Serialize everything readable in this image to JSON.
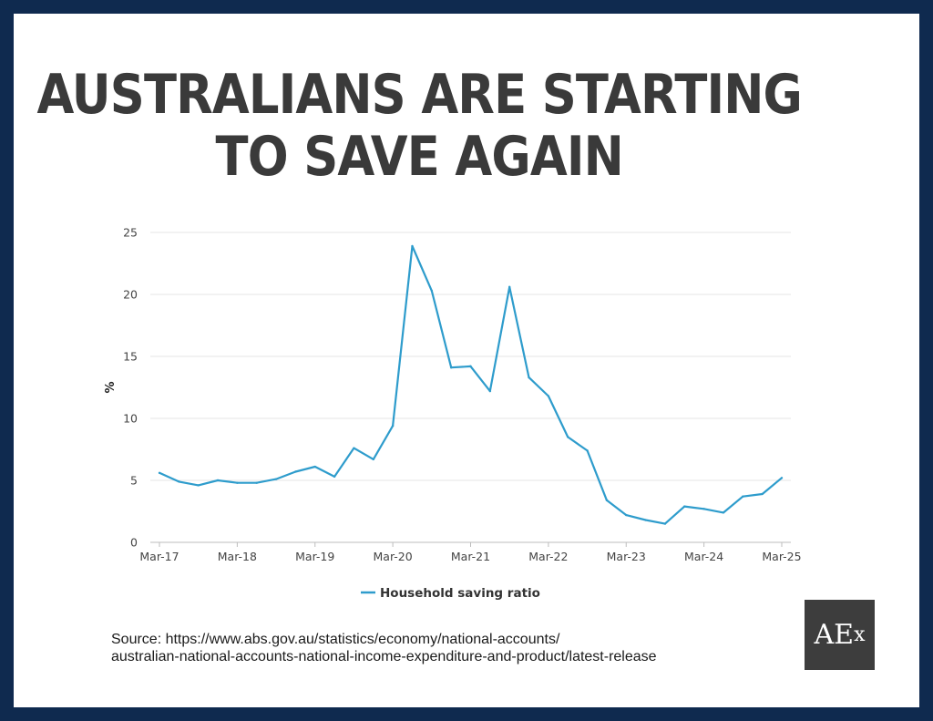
{
  "title": {
    "line1": "AUSTRALIANS ARE STARTING",
    "line2": "TO SAVE AGAIN"
  },
  "source": {
    "line1": "Source: https://www.abs.gov.au/statistics/economy/national-accounts/",
    "line2": "australian-national-accounts-national-income-expenditure-and-product/latest-release"
  },
  "logo": {
    "main": "AE",
    "sub": "x"
  },
  "colors": {
    "background": "#0f2a4f",
    "series": "#2e9ccc",
    "title": "#3a3a3a",
    "logo_bg": "#3d3d3d"
  },
  "chart_data": {
    "type": "line",
    "title": "",
    "xlabel": "",
    "ylabel": "%",
    "ylim": [
      0,
      25
    ],
    "yticks": [
      0,
      5,
      10,
      15,
      20,
      25
    ],
    "grid": true,
    "legend_position": "bottom-center",
    "x": [
      "Mar-17",
      "Jun-17",
      "Sep-17",
      "Dec-17",
      "Mar-18",
      "Jun-18",
      "Sep-18",
      "Dec-18",
      "Mar-19",
      "Jun-19",
      "Sep-19",
      "Dec-19",
      "Mar-20",
      "Jun-20",
      "Sep-20",
      "Dec-20",
      "Mar-21",
      "Jun-21",
      "Sep-21",
      "Dec-21",
      "Mar-22",
      "Jun-22",
      "Sep-22",
      "Dec-22",
      "Mar-23",
      "Jun-23",
      "Sep-23",
      "Dec-23",
      "Mar-24",
      "Jun-24",
      "Sep-24",
      "Dec-24",
      "Mar-25"
    ],
    "xticks": [
      "Mar-17",
      "Mar-18",
      "Mar-19",
      "Mar-20",
      "Mar-21",
      "Mar-22",
      "Mar-23",
      "Mar-24",
      "Mar-25"
    ],
    "series": [
      {
        "name": "Household saving ratio",
        "values": [
          5.6,
          4.9,
          4.6,
          5.0,
          4.8,
          4.8,
          5.1,
          5.7,
          6.1,
          5.3,
          7.6,
          6.7,
          9.4,
          23.9,
          20.3,
          14.1,
          14.2,
          12.2,
          20.6,
          13.3,
          11.8,
          8.5,
          7.4,
          3.4,
          2.2,
          1.8,
          1.5,
          2.9,
          2.7,
          2.4,
          3.7,
          3.9,
          5.2
        ]
      }
    ]
  }
}
